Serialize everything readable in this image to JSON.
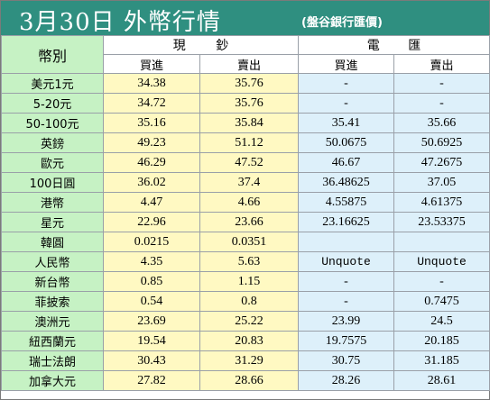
{
  "header": {
    "title": "3月30日 外幣行情",
    "source": "(盤谷銀行匯價)"
  },
  "table": {
    "corner_label": "幣別",
    "cash_label": [
      "現",
      "鈔"
    ],
    "tt_label": [
      "電",
      "匯"
    ],
    "sub_headers": [
      "買進",
      "賣出",
      "買進",
      "賣出"
    ],
    "rows": [
      {
        "currency": "美元1元",
        "cash_buy": "34.38",
        "cash_sell": "35.76",
        "tt_buy": "-",
        "tt_sell": "-"
      },
      {
        "currency": "5-20元",
        "cash_buy": "34.72",
        "cash_sell": "35.76",
        "tt_buy": "-",
        "tt_sell": "-"
      },
      {
        "currency": "50-100元",
        "cash_buy": "35.16",
        "cash_sell": "35.84",
        "tt_buy": "35.41",
        "tt_sell": "35.66"
      },
      {
        "currency": "英鎊",
        "cash_buy": "49.23",
        "cash_sell": "51.12",
        "tt_buy": "50.0675",
        "tt_sell": "50.6925"
      },
      {
        "currency": "歐元",
        "cash_buy": "46.29",
        "cash_sell": "47.52",
        "tt_buy": "46.67",
        "tt_sell": "47.2675"
      },
      {
        "currency": "100日圓",
        "cash_buy": "36.02",
        "cash_sell": "37.4",
        "tt_buy": "36.48625",
        "tt_sell": "37.05"
      },
      {
        "currency": "港幣",
        "cash_buy": "4.47",
        "cash_sell": "4.66",
        "tt_buy": "4.55875",
        "tt_sell": "4.61375"
      },
      {
        "currency": "星元",
        "cash_buy": "22.96",
        "cash_sell": "23.66",
        "tt_buy": "23.16625",
        "tt_sell": "23.53375"
      },
      {
        "currency": "韓圓",
        "cash_buy": "0.0215",
        "cash_sell": "0.0351",
        "tt_buy": "",
        "tt_sell": ""
      },
      {
        "currency": "人民幣",
        "cash_buy": "4.35",
        "cash_sell": "5.63",
        "tt_buy": "Unquote",
        "tt_sell": "Unquote"
      },
      {
        "currency": "新台幣",
        "cash_buy": "0.85",
        "cash_sell": "1.15",
        "tt_buy": "-",
        "tt_sell": "-"
      },
      {
        "currency": "菲披索",
        "cash_buy": "0.54",
        "cash_sell": "0.8",
        "tt_buy": "-",
        "tt_sell": "0.7475"
      },
      {
        "currency": "澳洲元",
        "cash_buy": "23.69",
        "cash_sell": "25.22",
        "tt_buy": "23.99",
        "tt_sell": "24.5"
      },
      {
        "currency": "紐西蘭元",
        "cash_buy": "19.54",
        "cash_sell": "20.83",
        "tt_buy": "19.7575",
        "tt_sell": "20.185"
      },
      {
        "currency": "瑞士法朗",
        "cash_buy": "30.43",
        "cash_sell": "31.29",
        "tt_buy": "30.75",
        "tt_sell": "31.185"
      },
      {
        "currency": "加拿大元",
        "cash_buy": "27.82",
        "cash_sell": "28.66",
        "tt_buy": "28.26",
        "tt_sell": "28.61"
      }
    ]
  },
  "colors": {
    "title_bar": "#2f8f80",
    "currency_column": "#c6f2c4",
    "cash_columns": "#fff9c2",
    "tt_columns": "#ddf0fa",
    "grid": "#9aa0a8"
  }
}
